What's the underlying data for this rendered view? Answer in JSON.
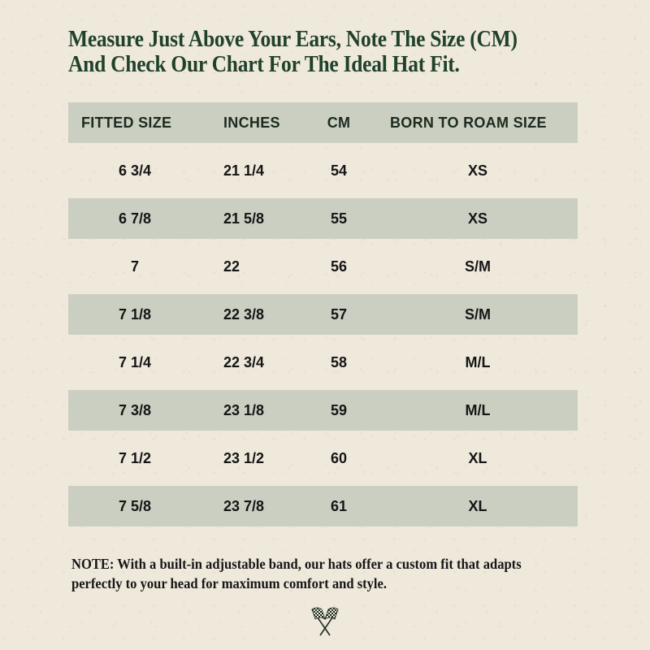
{
  "heading": {
    "line1": "Measure Just Above Your Ears, Note The Size (CM)",
    "line2": "And Check Our Chart For The Ideal Hat Fit."
  },
  "table": {
    "columns": [
      "FITTED SIZE",
      "INCHES",
      "CM",
      "BORN TO ROAM SIZE"
    ],
    "rows": [
      {
        "fitted": "6 3/4",
        "inches": "21 1/4",
        "cm": "54",
        "brand": "XS"
      },
      {
        "fitted": "6 7/8",
        "inches": "21 5/8",
        "cm": "55",
        "brand": "XS"
      },
      {
        "fitted": "7",
        "inches": "22",
        "cm": "56",
        "brand": "S/M"
      },
      {
        "fitted": "7 1/8",
        "inches": "22 3/8",
        "cm": "57",
        "brand": "S/M"
      },
      {
        "fitted": "7 1/4",
        "inches": "22 3/4",
        "cm": "58",
        "brand": "M/L"
      },
      {
        "fitted": "7 3/8",
        "inches": "23 1/8",
        "cm": "59",
        "brand": "M/L"
      },
      {
        "fitted": "7 1/2",
        "inches": "23 1/2",
        "cm": "60",
        "brand": "XL"
      },
      {
        "fitted": "7 5/8",
        "inches": "23 7/8",
        "cm": "61",
        "brand": "XL"
      }
    ]
  },
  "note": {
    "label": "NOTE:",
    "text": "With a built-in adjustable band, our hats offer a custom fit that adapts perfectly to your head for maximum comfort and style."
  },
  "icons": {
    "flags": "checkered-flags-icon"
  },
  "colors": {
    "background": "#efe9dc",
    "heading": "#20412b",
    "row_shade": "#cbcfc1"
  }
}
